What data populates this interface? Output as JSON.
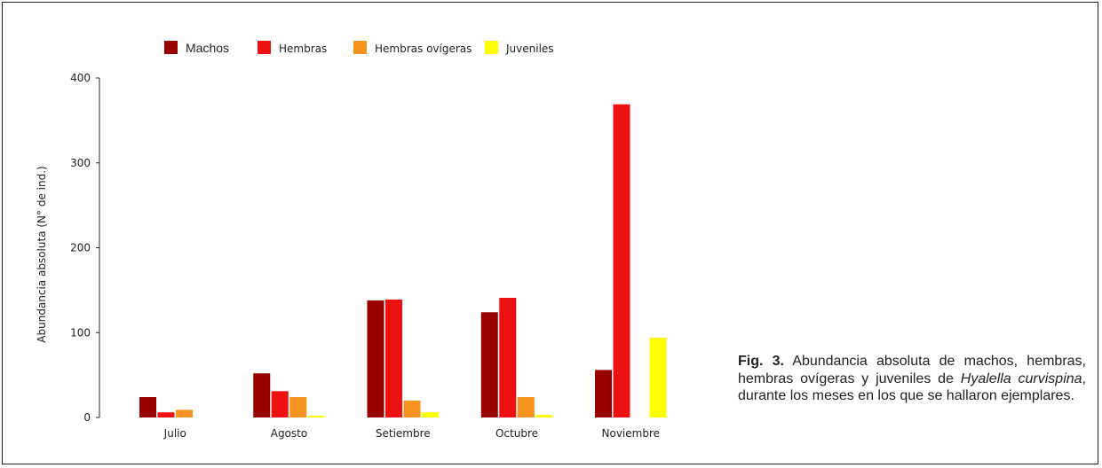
{
  "chart_data": {
    "type": "bar",
    "categories": [
      "Julio",
      "Agosto",
      "Setiembre",
      "Octubre",
      "Noviembre"
    ],
    "series": [
      {
        "name": "Machos",
        "color": "#990000",
        "values": [
          24,
          52,
          138,
          124,
          56
        ]
      },
      {
        "name": "Hembras",
        "color": "#ee1111",
        "values": [
          6,
          31,
          139,
          141,
          369
        ]
      },
      {
        "name": "Hembras ovígeras",
        "color": "#f7931e",
        "values": [
          9,
          24,
          20,
          24,
          0
        ]
      },
      {
        "name": "Juveniles",
        "color": "#ffff00",
        "values": [
          0,
          2,
          6,
          3,
          94
        ]
      }
    ],
    "ylabel": "Abundancia absoluta (N° de ind.)",
    "xlabel": "",
    "ylim": [
      0,
      400
    ],
    "yticks": [
      0,
      100,
      200,
      300,
      400
    ],
    "grid": false,
    "legend": "top"
  },
  "caption": {
    "fig_label": "Fig. 3.",
    "text_before": " Abundancia absoluta de machos, hembras, hembras ovígeras y juveniles de ",
    "species": "Hyalella curvispina",
    "text_after": ", durante los meses en los que se hallaron ejemplares."
  }
}
